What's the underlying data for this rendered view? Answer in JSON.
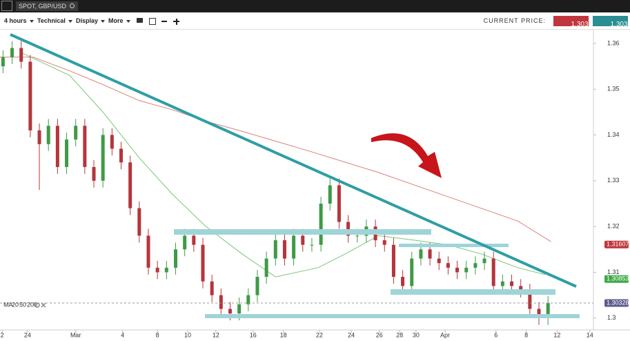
{
  "header": {
    "symbol": "SPOT, GBP/USD"
  },
  "toolbar": {
    "timeframe": "4 hours",
    "menus": [
      "Technical",
      "Display",
      "More"
    ],
    "current_price_label": "CURRENT PRICE:",
    "bid": "1.30323",
    "ask": "1.30333"
  },
  "chart_data": {
    "type": "candlestick",
    "x": [
      1,
      4,
      7,
      10,
      13,
      16,
      19,
      22,
      25,
      28,
      31,
      34,
      37,
      40,
      43,
      46,
      49,
      52,
      55,
      58,
      61,
      64,
      67,
      70,
      73,
      76,
      79,
      82,
      85,
      88,
      91,
      94,
      97,
      100,
      103,
      106,
      109,
      112,
      115,
      118,
      121,
      124,
      127,
      130,
      133,
      136,
      139,
      142,
      145,
      148,
      151,
      154,
      157,
      160,
      163,
      166,
      169,
      172,
      175,
      178,
      181
    ],
    "open": [
      1.355,
      1.357,
      1.359,
      1.356,
      1.341,
      1.338,
      1.342,
      1.333,
      1.339,
      1.342,
      1.333,
      1.33,
      1.34,
      1.337,
      1.334,
      1.324,
      1.318,
      1.311,
      1.31,
      1.311,
      1.315,
      1.318,
      1.316,
      1.308,
      1.305,
      1.302,
      1.301,
      1.303,
      1.305,
      1.309,
      1.313,
      1.317,
      1.313,
      1.318,
      1.316,
      1.316,
      1.325,
      1.329,
      1.321,
      1.318,
      1.318,
      1.32,
      1.317,
      1.316,
      1.309,
      1.307,
      1.313,
      1.315,
      1.313,
      1.312,
      1.311,
      1.31,
      1.311,
      1.312,
      1.313,
      1.307,
      1.308,
      1.307,
      1.306,
      1.302,
      1.3
    ],
    "high": [
      1.3585,
      1.3605,
      1.3605,
      1.3575,
      1.3425,
      1.3435,
      1.3435,
      1.3405,
      1.3435,
      1.3435,
      1.3345,
      1.3415,
      1.3415,
      1.3385,
      1.3355,
      1.3255,
      1.3195,
      1.3125,
      1.3125,
      1.3165,
      1.3195,
      1.3195,
      1.3175,
      1.3095,
      1.3065,
      1.3035,
      1.3045,
      1.3065,
      1.3105,
      1.3145,
      1.3185,
      1.3185,
      1.3195,
      1.3195,
      1.3175,
      1.3265,
      1.3305,
      1.3305,
      1.3225,
      1.3195,
      1.3215,
      1.3215,
      1.3185,
      1.3175,
      1.3105,
      1.3145,
      1.3165,
      1.3165,
      1.3145,
      1.3135,
      1.3125,
      1.3125,
      1.3135,
      1.3145,
      1.3145,
      1.3095,
      1.3095,
      1.3085,
      1.3075,
      1.3035,
      1.3048
    ],
    "low": [
      1.3535,
      1.3555,
      1.3545,
      1.3395,
      1.328,
      1.3365,
      1.3315,
      1.3315,
      1.3375,
      1.3315,
      1.3285,
      1.3285,
      1.3355,
      1.3325,
      1.3225,
      1.3165,
      1.3095,
      1.3085,
      1.3085,
      1.3095,
      1.3135,
      1.3145,
      1.3065,
      1.3035,
      1.3005,
      1.2995,
      1.2995,
      1.3015,
      1.3035,
      1.3075,
      1.3115,
      1.3115,
      1.3115,
      1.3145,
      1.3145,
      1.3145,
      1.3235,
      1.3195,
      1.3165,
      1.3165,
      1.3165,
      1.3155,
      1.3145,
      1.3075,
      1.3055,
      1.3055,
      1.3115,
      1.3115,
      1.3105,
      1.3095,
      1.3085,
      1.3085,
      1.3095,
      1.3105,
      1.3055,
      1.3055,
      1.3055,
      1.3045,
      1.3005,
      1.2985,
      1.2985
    ],
    "close": [
      1.357,
      1.359,
      1.356,
      1.341,
      1.338,
      1.342,
      1.333,
      1.339,
      1.342,
      1.333,
      1.33,
      1.34,
      1.337,
      1.334,
      1.324,
      1.318,
      1.311,
      1.31,
      1.311,
      1.315,
      1.318,
      1.316,
      1.308,
      1.305,
      1.302,
      1.301,
      1.303,
      1.305,
      1.309,
      1.313,
      1.317,
      1.313,
      1.318,
      1.316,
      1.316,
      1.325,
      1.329,
      1.321,
      1.318,
      1.318,
      1.32,
      1.317,
      1.316,
      1.309,
      1.307,
      1.313,
      1.315,
      1.313,
      1.312,
      1.311,
      1.31,
      1.311,
      1.312,
      1.313,
      1.307,
      1.308,
      1.307,
      1.306,
      1.302,
      1.3,
      1.3033
    ],
    "up_color": "#3f9a46",
    "down_color": "#b5353b",
    "xlim": [
      0,
      196
    ],
    "ylim": [
      1.2974,
      1.363
    ],
    "xticks": [
      {
        "value": 0.7,
        "label": "2"
      },
      {
        "value": 9.1,
        "label": "24"
      },
      {
        "value": 25,
        "label": "Mar"
      },
      {
        "value": 40.5,
        "label": "4"
      },
      {
        "value": 52,
        "label": "8"
      },
      {
        "value": 62,
        "label": "10"
      },
      {
        "value": 71.3,
        "label": "12"
      },
      {
        "value": 83.6,
        "label": "16"
      },
      {
        "value": 93.6,
        "label": "18"
      },
      {
        "value": 105.5,
        "label": "22"
      },
      {
        "value": 116,
        "label": "24"
      },
      {
        "value": 125.3,
        "label": "26"
      },
      {
        "value": 132,
        "label": "28"
      },
      {
        "value": 137.4,
        "label": "30"
      },
      {
        "value": 147,
        "label": "Apr"
      },
      {
        "value": 163.8,
        "label": "6"
      },
      {
        "value": 173.8,
        "label": "8"
      },
      {
        "value": 184,
        "label": "12"
      },
      {
        "value": 194.8,
        "label": "14"
      }
    ],
    "yticks": [
      1.3,
      1.31,
      1.32,
      1.33,
      1.34,
      1.35,
      1.36
    ],
    "grid": true,
    "indicators": {
      "label": "MA",
      "periods": [
        "20",
        "50",
        "200"
      ],
      "series": [
        {
          "color": "#7cc47a",
          "x": [
            7,
            23,
            34,
            46,
            57,
            68,
            80,
            91,
            105,
            114,
            125,
            137,
            148,
            159,
            171,
            180
          ],
          "values": [
            1.358,
            1.353,
            1.345,
            1.335,
            1.327,
            1.32,
            1.314,
            1.309,
            1.311,
            1.314,
            1.318,
            1.317,
            1.316,
            1.314,
            1.311,
            1.3095
          ]
        },
        {
          "color": "#d9807a",
          "x": [
            0,
            11,
            23,
            34,
            46,
            57,
            68,
            80,
            103,
            125,
            148,
            171,
            182
          ],
          "values": [
            1.357,
            1.357,
            1.354,
            1.351,
            1.3475,
            1.3455,
            1.343,
            1.3408,
            1.3363,
            1.3318,
            1.3265,
            1.3212,
            1.3167
          ]
        }
      ]
    },
    "price_tags": [
      {
        "value": 1.31607,
        "color": "#c0363c"
      },
      {
        "value": 1.30853,
        "color": "#3daa45"
      },
      {
        "value": 1.30328,
        "color": "#5b5c8c"
      }
    ]
  }
}
